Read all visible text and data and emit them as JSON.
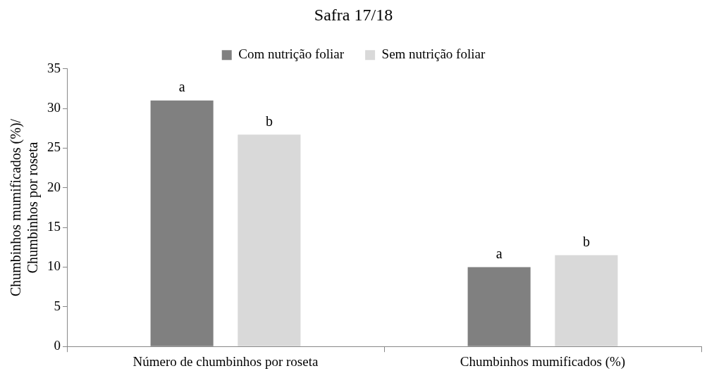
{
  "chart_data": {
    "type": "bar",
    "title": "Safra 17/18",
    "ylabel": "Chumbinhos mumificados (%)/\nChumbinhos por roseta",
    "categories": [
      "Número de chumbinhos por roseta",
      "Chumbinhos mumificados (%)"
    ],
    "series": [
      {
        "name": "Com nutrição foliar",
        "color": "#808080",
        "values": [
          31.0,
          10.0
        ],
        "value_labels": [
          "a",
          "a"
        ]
      },
      {
        "name": "Sem nutrição foliar",
        "color": "#d9d9d9",
        "values": [
          26.7,
          11.5
        ],
        "value_labels": [
          "b",
          "b"
        ]
      }
    ],
    "ylim": [
      0,
      35
    ],
    "yticks": [
      0,
      5,
      10,
      15,
      20,
      25,
      30,
      35
    ],
    "grid": false,
    "legend": "top"
  }
}
